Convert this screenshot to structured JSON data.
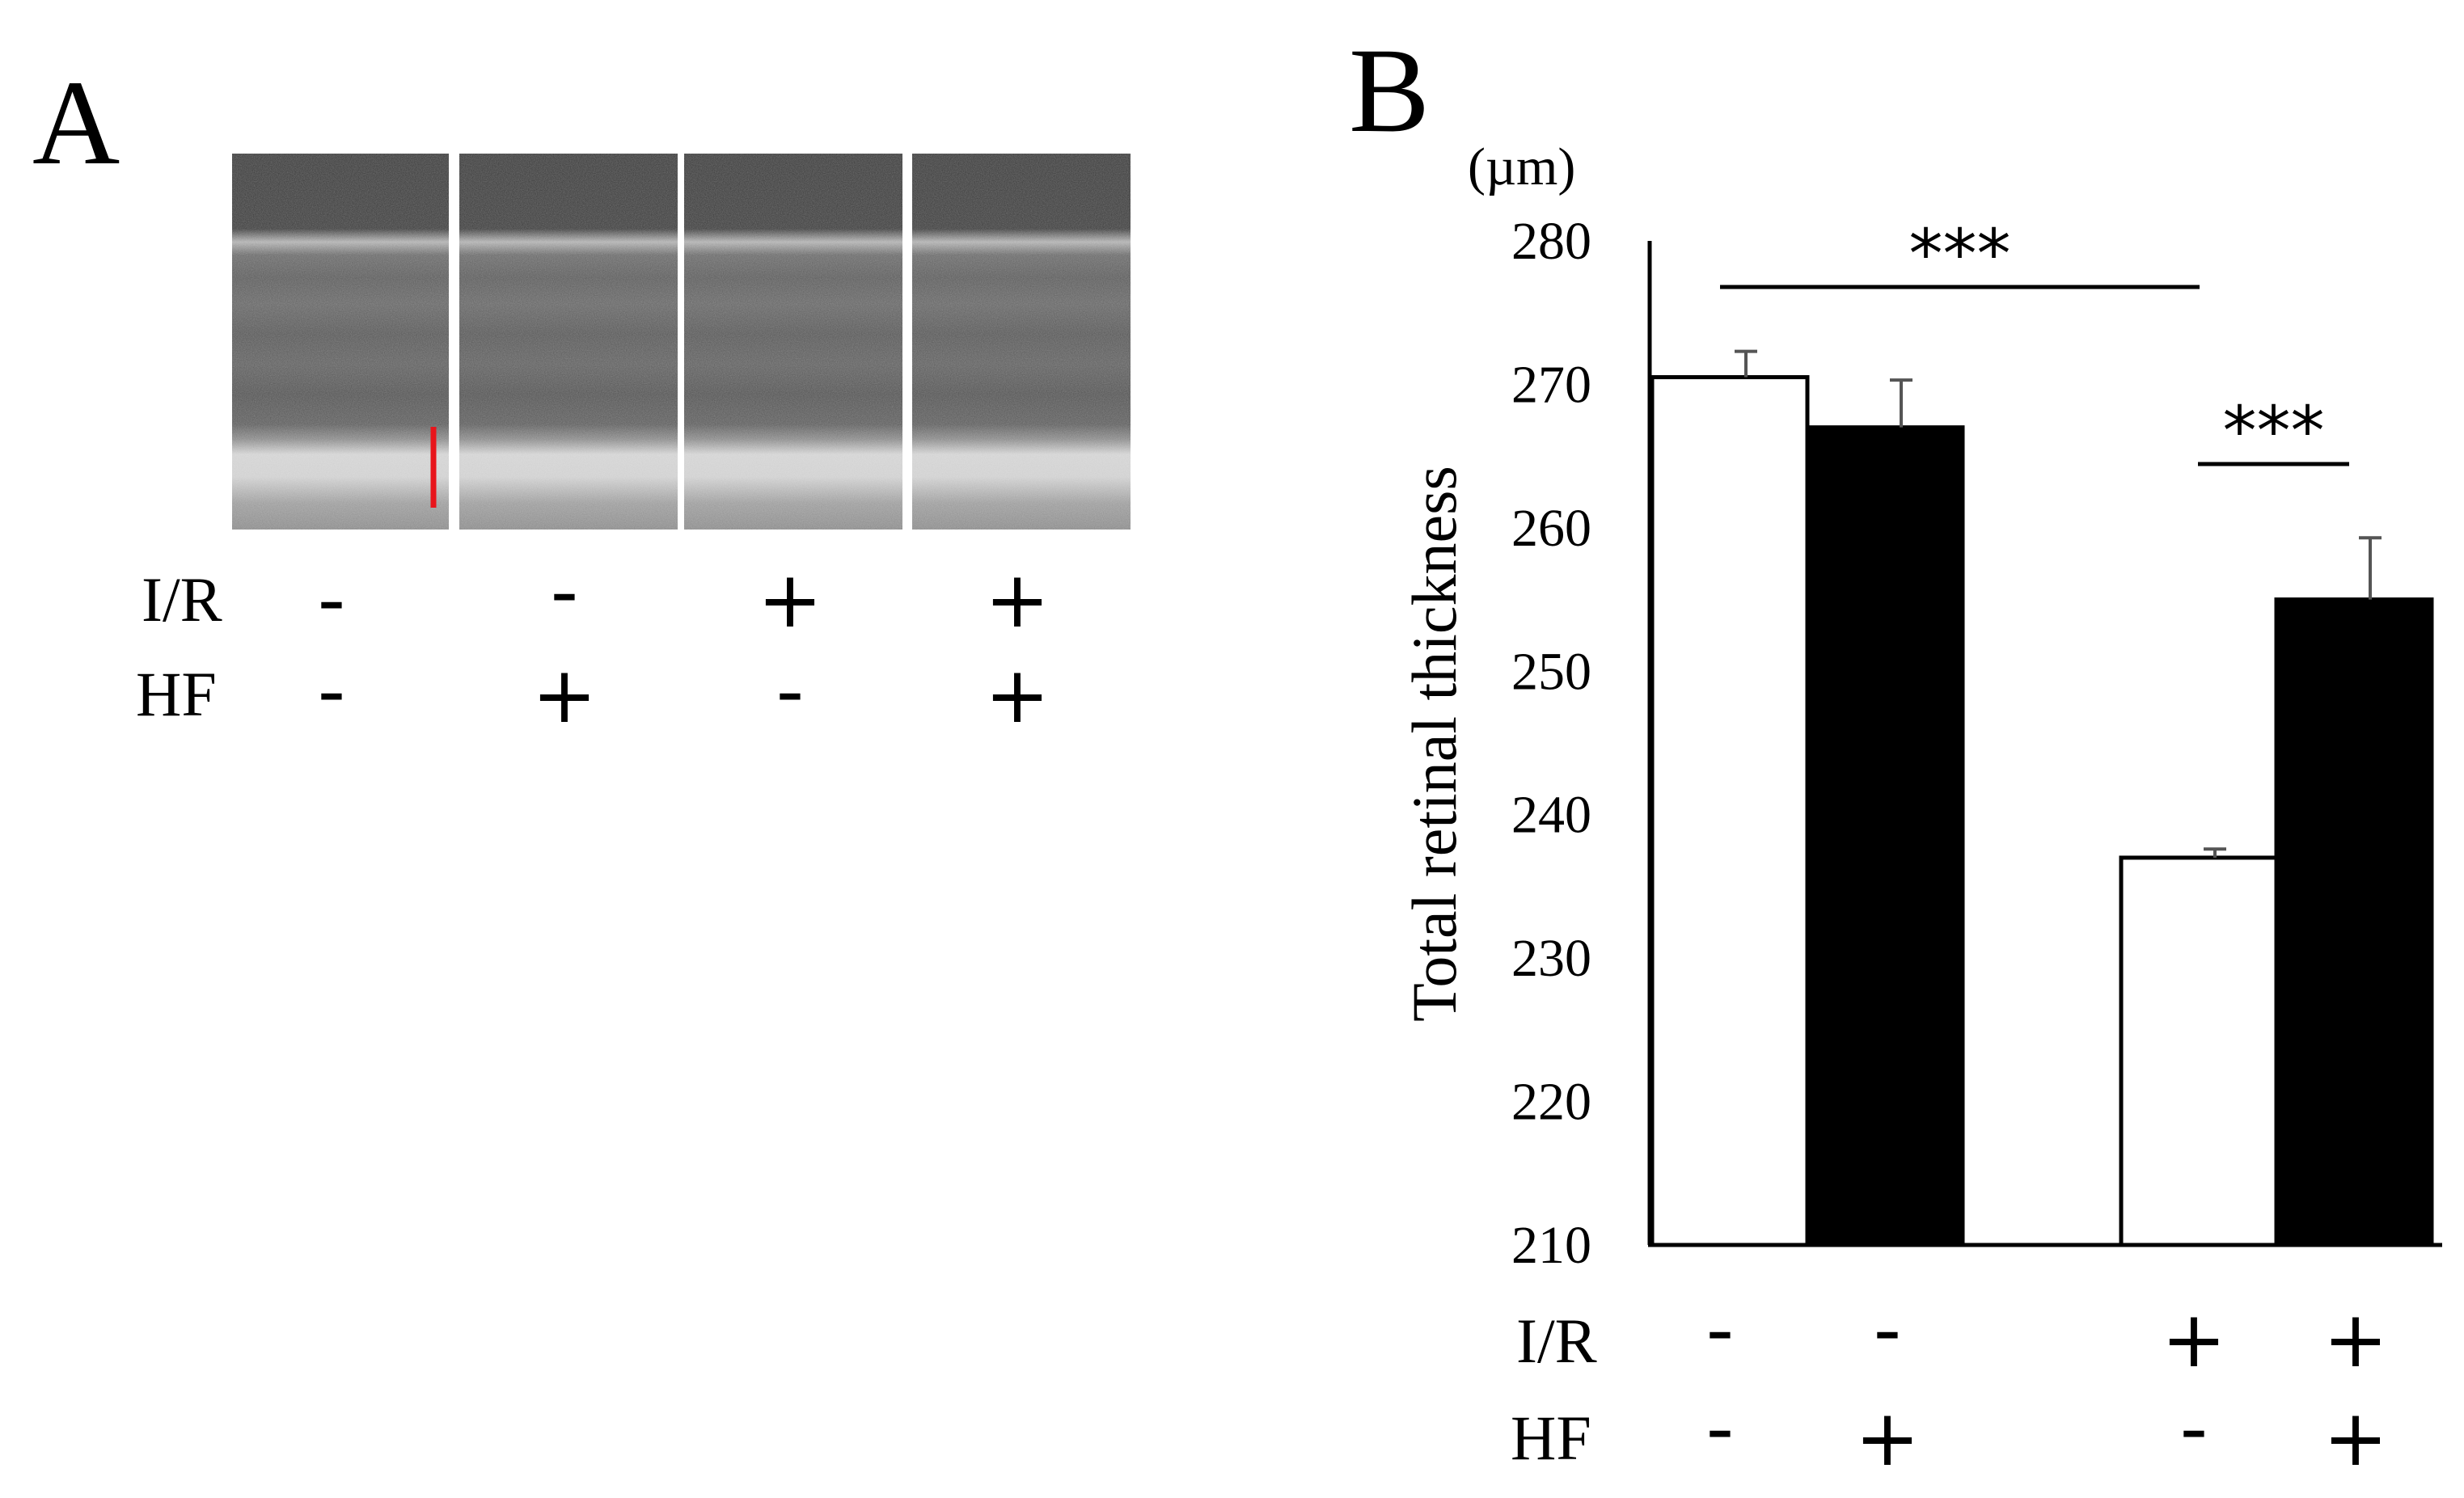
{
  "figure": {
    "panel_a": {
      "letter": "A",
      "row_labels": [
        "I/R",
        "HF"
      ],
      "signs": [
        [
          "-",
          "-",
          "+",
          "+"
        ],
        [
          "-",
          "+",
          "-",
          "+"
        ]
      ],
      "scalebar_color": "#e8141b"
    },
    "panel_b": {
      "letter": "B"
    }
  },
  "chart_data": {
    "type": "bar",
    "ylabel": "Total retinal thickness",
    "yunit": "(µm)",
    "ylim": [
      210,
      280
    ],
    "yticks": [
      210,
      220,
      230,
      240,
      250,
      260,
      270,
      280
    ],
    "grid": false,
    "bars": [
      {
        "value": 270.5,
        "error": 1.8,
        "fill": "#ffffff",
        "ir": "-",
        "hf": "-"
      },
      {
        "value": 267.0,
        "error": 3.3,
        "fill": "#000000",
        "ir": "-",
        "hf": "+"
      },
      {
        "value": 237.0,
        "error": 0.6,
        "fill": "#ffffff",
        "ir": "+",
        "hf": "-"
      },
      {
        "value": 255.0,
        "error": 4.3,
        "fill": "#000000",
        "ir": "+",
        "hf": "+"
      }
    ],
    "row_labels": [
      "I/R",
      "HF"
    ],
    "significance": [
      {
        "from": 0,
        "to": 2,
        "label": "***"
      },
      {
        "from": 2,
        "to": 3,
        "label": "***"
      }
    ]
  }
}
